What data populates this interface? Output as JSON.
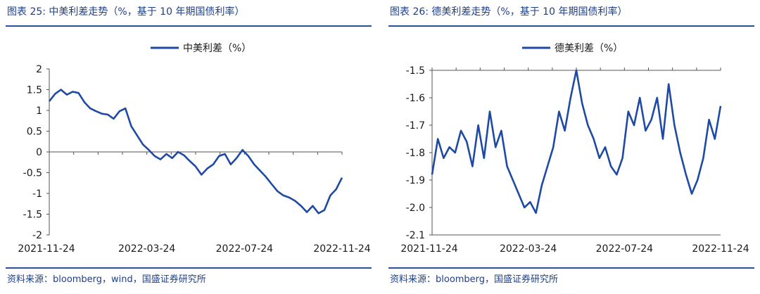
{
  "charts": [
    {
      "title": "图表 25:  中美利差走势（%，基于 10 年期国债利率）",
      "source": "资料来源：bloomberg，wind，国盛证券研究所",
      "chart_data": {
        "type": "line",
        "title": "中美利差走势（%，基于 10 年期国债利率）",
        "legend": "中美利差（%）",
        "x_ticks": [
          "2021-11-24",
          "2022-03-24",
          "2022-07-24",
          "2022-11-24"
        ],
        "y_ticks": [
          "2",
          "1.5",
          "1",
          "0.5",
          "0",
          "-0.5",
          "-1",
          "-1.5",
          "-2"
        ],
        "ylim": [
          -2,
          2
        ],
        "x": [
          0,
          0.02,
          0.04,
          0.06,
          0.08,
          0.1,
          0.12,
          0.14,
          0.16,
          0.18,
          0.2,
          0.22,
          0.24,
          0.26,
          0.28,
          0.3,
          0.32,
          0.34,
          0.36,
          0.38,
          0.4,
          0.42,
          0.44,
          0.46,
          0.48,
          0.5,
          0.52,
          0.54,
          0.56,
          0.58,
          0.6,
          0.62,
          0.64,
          0.66,
          0.68,
          0.7,
          0.72,
          0.74,
          0.76,
          0.78,
          0.8,
          0.82,
          0.84,
          0.86,
          0.88,
          0.9,
          0.92,
          0.94,
          0.96,
          0.98,
          1.0
        ],
        "values": [
          1.22,
          1.4,
          1.5,
          1.38,
          1.45,
          1.42,
          1.2,
          1.05,
          0.98,
          0.92,
          0.9,
          0.8,
          0.98,
          1.05,
          0.62,
          0.4,
          0.18,
          0.05,
          -0.1,
          -0.18,
          -0.05,
          -0.15,
          0.0,
          -0.08,
          -0.22,
          -0.35,
          -0.55,
          -0.4,
          -0.3,
          -0.1,
          -0.05,
          -0.3,
          -0.15,
          0.05,
          -0.1,
          -0.3,
          -0.45,
          -0.6,
          -0.78,
          -0.95,
          -1.05,
          -1.1,
          -1.18,
          -1.3,
          -1.45,
          -1.3,
          -1.48,
          -1.4,
          -1.05,
          -0.9,
          -0.62
        ],
        "series_color": "#1f4aa3"
      }
    },
    {
      "title": "图表 26:  德美利差走势（%，基于 10 年期国债利率）",
      "source": "资料来源：bloomberg，国盛证券研究所",
      "chart_data": {
        "type": "line",
        "title": "德美利差走势（%，基于 10 年期国债利率）",
        "legend": "德美利差（%）",
        "x_ticks": [
          "2021-11-24",
          "2022-03-24",
          "2022-07-24",
          "2022-11-24"
        ],
        "y_ticks": [
          "-1.5",
          "-1.6",
          "-1.7",
          "-1.8",
          "-1.9",
          "-2.0",
          "-2.1"
        ],
        "ylim": [
          -2.1,
          -1.5
        ],
        "x": [
          0,
          0.02,
          0.04,
          0.06,
          0.08,
          0.1,
          0.12,
          0.14,
          0.16,
          0.18,
          0.2,
          0.22,
          0.24,
          0.26,
          0.28,
          0.3,
          0.32,
          0.34,
          0.36,
          0.38,
          0.4,
          0.42,
          0.44,
          0.46,
          0.48,
          0.5,
          0.52,
          0.54,
          0.56,
          0.58,
          0.6,
          0.62,
          0.64,
          0.66,
          0.68,
          0.7,
          0.72,
          0.74,
          0.76,
          0.78,
          0.8,
          0.82,
          0.84,
          0.86,
          0.88,
          0.9,
          0.92,
          0.94,
          0.96,
          0.98,
          1.0
        ],
        "values": [
          -1.88,
          -1.75,
          -1.82,
          -1.78,
          -1.8,
          -1.72,
          -1.76,
          -1.85,
          -1.7,
          -1.82,
          -1.65,
          -1.78,
          -1.72,
          -1.85,
          -1.9,
          -1.95,
          -2.0,
          -1.98,
          -2.02,
          -1.92,
          -1.85,
          -1.78,
          -1.65,
          -1.72,
          -1.6,
          -1.5,
          -1.62,
          -1.7,
          -1.75,
          -1.82,
          -1.78,
          -1.85,
          -1.88,
          -1.82,
          -1.65,
          -1.7,
          -1.6,
          -1.72,
          -1.68,
          -1.6,
          -1.75,
          -1.55,
          -1.7,
          -1.8,
          -1.88,
          -1.95,
          -1.9,
          -1.82,
          -1.68,
          -1.75,
          -1.63
        ],
        "series_color": "#1f4aa3"
      }
    }
  ]
}
